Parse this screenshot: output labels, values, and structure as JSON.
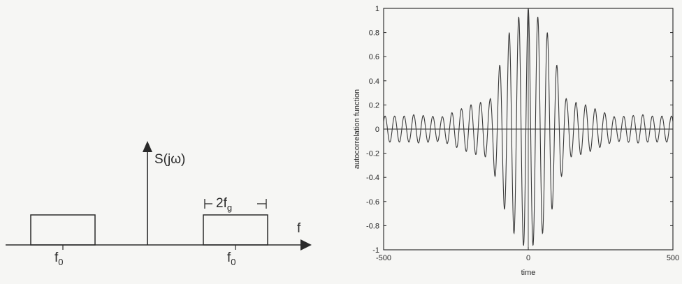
{
  "spectrum_sketch": {
    "y_axis_label": "S(jω)",
    "x_axis_label": "f",
    "band_width_label_main": "2f",
    "band_width_label_sub": "g",
    "band_center_label_main": "f",
    "band_center_label_sub": "0"
  },
  "chart_data": {
    "type": "line",
    "xlabel": "time",
    "ylabel": "autocorrelation function",
    "xlim": [
      -500,
      500
    ],
    "ylim": [
      -1,
      1
    ],
    "x_ticks": [
      -500,
      0,
      500
    ],
    "y_ticks": [
      -1,
      -0.8,
      -0.6,
      -0.4,
      -0.2,
      0,
      0.2,
      0.4,
      0.6,
      0.8,
      1
    ],
    "x_tick_labels": [
      "-500",
      "0",
      "500"
    ],
    "y_tick_labels": [
      "-1",
      "-0.8",
      "-0.6",
      "-0.4",
      "-0.2",
      "0",
      "0.2",
      "0.4",
      "0.6",
      "0.8",
      "1"
    ],
    "grid": false,
    "series": [
      {
        "style": "solid",
        "peak_points": [
          {
            "x": 0,
            "y": 1.0
          },
          {
            "x": -33,
            "y": 0.93
          },
          {
            "x": 33,
            "y": 0.93
          },
          {
            "x": -66,
            "y": 0.8
          },
          {
            "x": 66,
            "y": 0.8
          },
          {
            "x": -100,
            "y": 0.52
          },
          {
            "x": 100,
            "y": 0.52
          },
          {
            "x": -133,
            "y": 0.24
          },
          {
            "x": 133,
            "y": 0.24
          },
          {
            "x": -200,
            "y": 0.2
          },
          {
            "x": 200,
            "y": 0.2
          },
          {
            "x": -300,
            "y": 0.1
          },
          {
            "x": 300,
            "y": 0.1
          },
          {
            "x": -400,
            "y": 0.12
          },
          {
            "x": 400,
            "y": 0.12
          }
        ]
      }
    ],
    "colors": {
      "line": "#3a3a3a",
      "axes": "#222222",
      "background": "#f6f6f4"
    }
  }
}
